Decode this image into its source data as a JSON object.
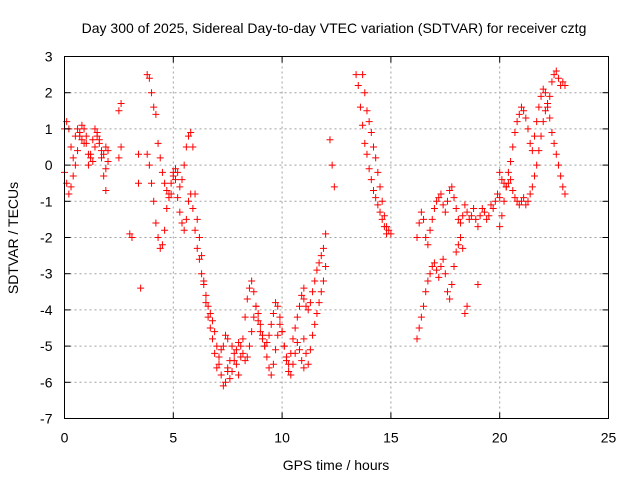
{
  "chart_data": {
    "type": "scatter",
    "title": "Day 300 of 2025, Sidereal Day-to-day VTEC variation (SDTVAR) for receiver cztg",
    "xlabel": "GPS time / hours",
    "ylabel": "SDTVAR / TECUs",
    "xlim": [
      0,
      25
    ],
    "ylim": [
      -7,
      3
    ],
    "xticks": [
      0,
      5,
      10,
      15,
      20,
      25
    ],
    "yticks": [
      -7,
      -6,
      -5,
      -4,
      -3,
      -2,
      -1,
      0,
      1,
      2,
      3
    ],
    "grid": true,
    "marker": "plus",
    "color": "#ff0000",
    "series": [
      {
        "name": "SDTVAR",
        "x": [
          0.0,
          0.1,
          0.2,
          0.3,
          0.4,
          0.5,
          0.6,
          0.7,
          0.8,
          0.9,
          1.0,
          1.1,
          1.2,
          1.3,
          1.4,
          1.5,
          1.6,
          1.7,
          1.8,
          1.9,
          2.0,
          0.0,
          0.1,
          0.2,
          0.3,
          0.4,
          0.5,
          0.6,
          0.7,
          0.8,
          0.9,
          1.0,
          1.1,
          1.2,
          1.3,
          1.4,
          1.5,
          1.6,
          1.7,
          1.8,
          1.9,
          2.0,
          1.9,
          2.5,
          2.6,
          2.5,
          2.6,
          3.0,
          3.1,
          3.5,
          3.4,
          3.4,
          3.8,
          3.9,
          4.0,
          4.1,
          4.2,
          4.3,
          4.4,
          4.5,
          4.6,
          4.7,
          4.8,
          4.9,
          5.0,
          5.1,
          5.2,
          5.3,
          5.4,
          5.5,
          5.6,
          5.7,
          5.8,
          5.9,
          6.0,
          6.1,
          6.2,
          6.3,
          6.4,
          6.5,
          6.6,
          6.7,
          6.8,
          6.9,
          7.0,
          7.1,
          7.2,
          7.3,
          7.4,
          7.5,
          3.8,
          3.9,
          4.0,
          4.1,
          4.2,
          4.3,
          4.4,
          4.5,
          4.6,
          4.7,
          4.8,
          4.9,
          5.0,
          5.1,
          5.2,
          5.3,
          5.4,
          5.5,
          5.6,
          5.7,
          5.8,
          5.9,
          6.0,
          6.1,
          6.2,
          6.3,
          6.4,
          6.5,
          6.6,
          6.7,
          6.8,
          6.9,
          7.0,
          7.1,
          7.2,
          7.3,
          7.4,
          7.5,
          7.6,
          7.7,
          7.8,
          7.9,
          8.0,
          8.1,
          8.2,
          8.3,
          8.4,
          8.5,
          8.6,
          8.7,
          8.8,
          8.9,
          9.0,
          9.1,
          9.2,
          9.3,
          9.4,
          9.5,
          9.6,
          9.7,
          9.8,
          9.9,
          10.0,
          10.1,
          10.2,
          10.3,
          10.4,
          10.5,
          10.6,
          10.7,
          10.8,
          10.9,
          11.0,
          7.5,
          7.6,
          7.7,
          7.8,
          7.9,
          8.0,
          8.1,
          8.2,
          8.3,
          8.4,
          8.5,
          8.6,
          8.7,
          8.8,
          8.9,
          9.0,
          9.1,
          9.2,
          9.3,
          9.4,
          9.5,
          9.6,
          9.7,
          9.8,
          9.9,
          10.0,
          10.1,
          10.2,
          10.3,
          10.4,
          10.5,
          10.6,
          10.7,
          10.8,
          10.9,
          11.0,
          11.0,
          11.1,
          11.2,
          11.3,
          11.4,
          11.5,
          11.6,
          11.7,
          11.8,
          11.9,
          12.0,
          11.0,
          11.1,
          11.2,
          11.3,
          11.4,
          11.5,
          11.6,
          11.7,
          11.8,
          11.9,
          12.0,
          12.2,
          12.3,
          12.4,
          13.4,
          13.5,
          13.6,
          13.7,
          13.8,
          13.9,
          14.0,
          14.1,
          14.2,
          14.3,
          14.4,
          14.5,
          14.6,
          14.7,
          14.8,
          13.7,
          13.8,
          13.9,
          14.0,
          14.1,
          14.2,
          14.3,
          14.4,
          14.5,
          14.6,
          14.7,
          14.8,
          14.9,
          15.0,
          16.2,
          16.3,
          16.4,
          16.5,
          16.6,
          16.7,
          16.8,
          16.9,
          17.0,
          17.1,
          17.2,
          17.3,
          17.4,
          17.5,
          17.6,
          17.7,
          17.8,
          17.9,
          18.0,
          18.1,
          18.2,
          18.3,
          18.4,
          18.5,
          18.6,
          18.7,
          18.8,
          18.9,
          19.0,
          19.1,
          19.2,
          19.3,
          19.4,
          19.5,
          19.6,
          19.7,
          19.8,
          19.9,
          20.0,
          16.2,
          16.3,
          16.4,
          16.5,
          16.6,
          16.7,
          16.8,
          16.9,
          17.0,
          17.1,
          17.2,
          17.3,
          17.4,
          17.5,
          17.6,
          17.7,
          17.8,
          17.9,
          18.0,
          18.1,
          18.2,
          18.3,
          18.4,
          18.5,
          19.0,
          20.0,
          20.1,
          20.2,
          20.3,
          20.4,
          20.5,
          20.6,
          20.7,
          20.8,
          20.9,
          21.0,
          21.1,
          21.2,
          21.3,
          21.4,
          21.5,
          21.6,
          21.7,
          21.8,
          21.9,
          22.0,
          22.1,
          22.2,
          22.3,
          22.4,
          22.5,
          22.6,
          22.7,
          22.8,
          22.9,
          23.0,
          20.0,
          20.1,
          20.2,
          20.3,
          20.4,
          20.5,
          20.6,
          20.7,
          20.8,
          20.9,
          21.0,
          21.1,
          21.2,
          21.3,
          21.4,
          21.5,
          21.6,
          21.7,
          21.8,
          21.9,
          22.0,
          22.1,
          22.2,
          22.3,
          22.4,
          22.5,
          22.6,
          22.7,
          22.8,
          22.9,
          23.0
        ],
        "y": [
          1.0,
          1.2,
          1.0,
          0.5,
          0.2,
          0.8,
          1.0,
          0.9,
          0.7,
          0.6,
          0.8,
          0.3,
          0.2,
          0.1,
          0.5,
          0.9,
          0.7,
          0.4,
          0.3,
          0.5,
          0.4,
          -0.2,
          -0.5,
          -0.8,
          -0.6,
          -0.3,
          0.0,
          0.4,
          0.8,
          1.1,
          1.0,
          0.6,
          0.0,
          0.3,
          0.7,
          1.0,
          0.8,
          0.6,
          0.2,
          -0.3,
          -0.1,
          0.1,
          -0.7,
          1.5,
          1.7,
          0.2,
          0.5,
          -1.9,
          -2.0,
          -3.4,
          -0.5,
          0.3,
          2.5,
          2.4,
          2.0,
          1.6,
          1.4,
          0.6,
          0.2,
          -0.2,
          -0.5,
          -0.7,
          -0.9,
          -0.8,
          -0.3,
          -0.1,
          -0.2,
          -0.6,
          -0.4,
          0.0,
          0.5,
          0.8,
          0.9,
          0.5,
          -0.8,
          -1.5,
          -2.0,
          -2.5,
          -3.2,
          -3.8,
          -4.2,
          -4.5,
          -4.8,
          -5.2,
          -5.6,
          -5.3,
          -5.1,
          -5.0,
          -4.7,
          -4.8,
          0.3,
          0.0,
          -0.5,
          -1.0,
          -1.6,
          -2.0,
          -2.3,
          -2.2,
          -1.8,
          -1.2,
          -0.8,
          -0.5,
          -0.2,
          -0.4,
          -0.9,
          -1.3,
          -1.6,
          -1.8,
          -1.5,
          -1.0,
          -0.8,
          -1.2,
          -1.8,
          -2.3,
          -2.6,
          -3.0,
          -3.3,
          -3.6,
          -3.9,
          -4.1,
          -4.3,
          -4.6,
          -5.0,
          -5.5,
          -5.8,
          -6.1,
          -6.0,
          -5.7,
          -5.4,
          -5.0,
          -5.2,
          -5.5,
          -5.8,
          -5.3,
          -4.8,
          -4.2,
          -3.7,
          -3.4,
          -3.2,
          -3.5,
          -3.9,
          -4.3,
          -4.6,
          -4.8,
          -5.0,
          -4.9,
          -4.7,
          -4.4,
          -4.1,
          -3.8,
          -3.9,
          -4.2,
          -4.6,
          -5.0,
          -5.3,
          -5.5,
          -5.2,
          -4.8,
          -4.5,
          -4.2,
          -3.9,
          -3.6,
          -3.4,
          -5.6,
          -5.9,
          -5.7,
          -5.4,
          -5.1,
          -4.9,
          -5.0,
          -5.2,
          -5.4,
          -5.3,
          -5.0,
          -4.6,
          -4.2,
          -3.9,
          -4.1,
          -4.4,
          -4.7,
          -5.0,
          -5.3,
          -5.6,
          -5.8,
          -5.5,
          -5.1,
          -4.7,
          -4.4,
          -4.6,
          -5.0,
          -5.4,
          -5.7,
          -5.8,
          -5.5,
          -5.2,
          -4.9,
          -5.1,
          -5.4,
          -5.6,
          -4.8,
          -5.2,
          -5.5,
          -5.1,
          -4.7,
          -4.4,
          -4.1,
          -3.8,
          -3.5,
          -3.2,
          -2.8,
          -3.7,
          -3.9,
          -4.0,
          -3.8,
          -3.5,
          -3.2,
          -2.9,
          -2.7,
          -2.5,
          -2.3,
          -1.9,
          0.7,
          0.0,
          -0.6,
          2.5,
          2.2,
          1.6,
          1.1,
          0.6,
          0.3,
          -0.1,
          -0.4,
          -0.7,
          -0.9,
          -1.1,
          -1.3,
          -1.5,
          -1.7,
          -1.9,
          2.5,
          2.0,
          1.5,
          1.2,
          0.9,
          0.5,
          0.2,
          -0.2,
          -0.6,
          -1.0,
          -1.4,
          -1.7,
          -1.8,
          -1.9,
          -2.0,
          -1.6,
          -1.3,
          -1.5,
          -2.0,
          -2.2,
          -1.8,
          -1.5,
          -1.2,
          -1.0,
          -0.9,
          -0.8,
          -1.1,
          -1.3,
          -1.0,
          -0.7,
          -0.6,
          -0.9,
          -1.2,
          -1.5,
          -1.6,
          -1.4,
          -1.1,
          -1.3,
          -1.5,
          -1.4,
          -1.2,
          -1.5,
          -1.7,
          -1.4,
          -1.2,
          -1.3,
          -1.5,
          -1.4,
          -1.1,
          -1.2,
          -1.0,
          -0.8,
          -0.9,
          -4.8,
          -4.5,
          -4.2,
          -3.9,
          -3.5,
          -3.2,
          -3.0,
          -2.8,
          -2.7,
          -2.9,
          -3.1,
          -2.8,
          -2.6,
          -3.0,
          -3.5,
          -3.7,
          -3.3,
          -2.8,
          -2.4,
          -2.2,
          -2.0,
          -2.3,
          -4.1,
          -3.9,
          -3.3,
          -1.7,
          -1.4,
          -1.0,
          -0.6,
          -0.2,
          0.1,
          0.5,
          0.9,
          1.2,
          1.4,
          1.6,
          1.5,
          1.3,
          1.0,
          0.6,
          0.4,
          0.8,
          1.2,
          1.6,
          1.9,
          2.1,
          2.0,
          1.6,
          1.3,
          0.9,
          0.6,
          0.3,
          0.0,
          -0.3,
          -0.6,
          -0.8,
          -0.2,
          -0.4,
          -0.5,
          -0.6,
          -0.5,
          -0.4,
          -0.7,
          -0.9,
          -1.0,
          -1.1,
          -1.0,
          -0.9,
          -1.1,
          -1.0,
          -0.8,
          -0.6,
          -0.3,
          0.0,
          0.4,
          0.8,
          1.2,
          1.5,
          1.7,
          1.9,
          2.3,
          2.5,
          2.6,
          2.4,
          2.2,
          2.3,
          2.2
        ]
      }
    ]
  }
}
